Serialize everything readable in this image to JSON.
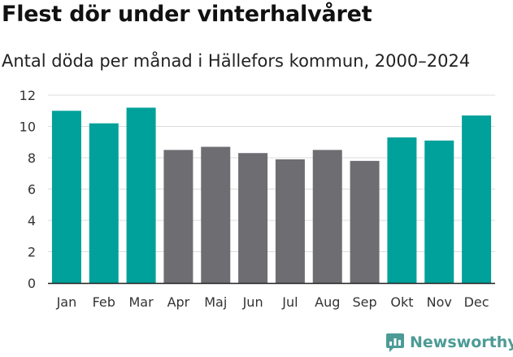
{
  "header": {
    "title": "Flest dör under vinterhalvåret",
    "subtitle": "Antal döda per månad i Hällefors kommun, 2000–2024"
  },
  "brand": {
    "name": "Newsworthy",
    "color": "#4d9b96"
  },
  "colors": {
    "winter": "#00a19a",
    "summer": "#6e6d72",
    "grid": "#dddddd",
    "axis": "#222222"
  },
  "chart_data": {
    "type": "bar",
    "title": "Flest dör under vinterhalvåret",
    "subtitle": "Antal döda per månad i Hällefors kommun, 2000–2024",
    "xlabel": "",
    "ylabel": "",
    "ylim": [
      0,
      12
    ],
    "yticks": [
      0,
      2,
      4,
      6,
      8,
      10,
      12
    ],
    "grid": true,
    "categories": [
      "Jan",
      "Feb",
      "Mar",
      "Apr",
      "Maj",
      "Jun",
      "Jul",
      "Aug",
      "Sep",
      "Okt",
      "Nov",
      "Dec"
    ],
    "values": [
      11.0,
      10.2,
      11.2,
      8.5,
      8.7,
      8.3,
      7.9,
      8.5,
      7.8,
      9.3,
      9.1,
      10.7
    ],
    "highlight": [
      true,
      true,
      true,
      false,
      false,
      false,
      false,
      false,
      false,
      true,
      true,
      true
    ]
  }
}
